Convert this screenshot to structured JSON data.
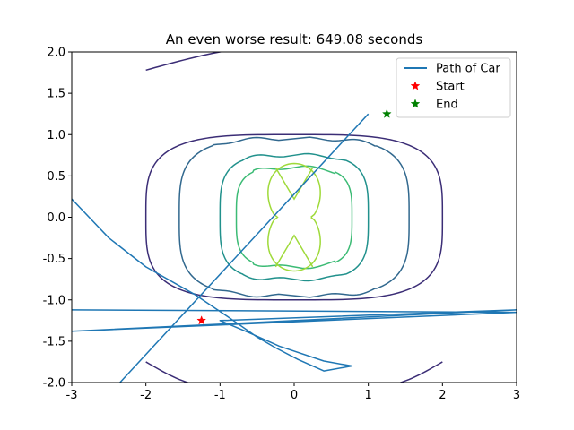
{
  "chart_data": {
    "type": "line",
    "title": "An even worse result: 649.08 seconds",
    "xlabel": "",
    "ylabel": "",
    "xlim": [
      -3,
      3
    ],
    "ylim": [
      -2,
      2
    ],
    "xticks": [
      "-3",
      "-2",
      "-1",
      "0",
      "1",
      "2",
      "3"
    ],
    "yticks": [
      "-2.0",
      "-1.5",
      "-1.0",
      "-0.5",
      "0.0",
      "0.5",
      "1.0",
      "1.5",
      "2.0"
    ],
    "grid": false,
    "legend_position": "top-right",
    "legend": [
      {
        "label": "Path of Car",
        "kind": "line",
        "color": "#1f77b4"
      },
      {
        "label": "Start",
        "kind": "star",
        "color": "#ff0000"
      },
      {
        "label": "End",
        "kind": "star",
        "color": "#008000"
      }
    ],
    "series": [
      {
        "name": "Path of Car",
        "color": "#1f77b4",
        "points": [
          [
            1.0,
            1.25
          ],
          [
            -2.35,
            -2.0
          ],
          [
            -3.0,
            0.22
          ],
          [
            -2.5,
            -0.25
          ],
          [
            -2.0,
            -0.6
          ],
          [
            -1.35,
            -0.93
          ],
          [
            -0.9,
            -1.2
          ],
          [
            -0.5,
            -1.45
          ],
          [
            -0.25,
            -1.58
          ],
          [
            0.05,
            -1.72
          ],
          [
            0.4,
            -1.86
          ],
          [
            0.78,
            -1.8
          ],
          [
            0.4,
            -1.74
          ],
          [
            -0.2,
            -1.56
          ],
          [
            -0.6,
            -1.4
          ],
          [
            -1.0,
            -1.25
          ],
          [
            3.0,
            -1.12
          ],
          [
            -3.0,
            -1.38
          ],
          [
            3.0,
            -1.15
          ],
          [
            -3.0,
            -1.12
          ]
        ]
      }
    ],
    "markers": [
      {
        "name": "Start",
        "x": -1.25,
        "y": -1.25,
        "color": "#ff0000",
        "symbol": "star"
      },
      {
        "name": "End",
        "x": 1.25,
        "y": 1.25,
        "color": "#008000",
        "symbol": "star"
      }
    ],
    "contours": [
      {
        "color": "#3b2d76",
        "shape": "stadium",
        "center": [
          0,
          0
        ],
        "half_width": 2.0,
        "half_height": 1.0
      },
      {
        "color": "#31688e",
        "shape": "stadium-wavy",
        "half_width": 1.55,
        "half_height": 0.95
      },
      {
        "color": "#21918c",
        "shape": "stadium-wavy",
        "half_width": 1.0,
        "half_height": 0.75
      },
      {
        "color": "#3cbb75",
        "shape": "stadium-wavy",
        "half_width": 0.78,
        "half_height": 0.6
      },
      {
        "color": "#9fda3a",
        "shape": "hourglass",
        "half_width": 0.5,
        "half_height": 0.65
      },
      {
        "color": "#3b2d76",
        "shape": "arc-top",
        "from": [
          -2.0,
          1.78
        ],
        "to": [
          1.5,
          2.0
        ]
      },
      {
        "color": "#3b2d76",
        "shape": "arc-bottom",
        "from": [
          -2.0,
          -1.75
        ],
        "to": [
          2.0,
          -1.75
        ]
      }
    ]
  }
}
